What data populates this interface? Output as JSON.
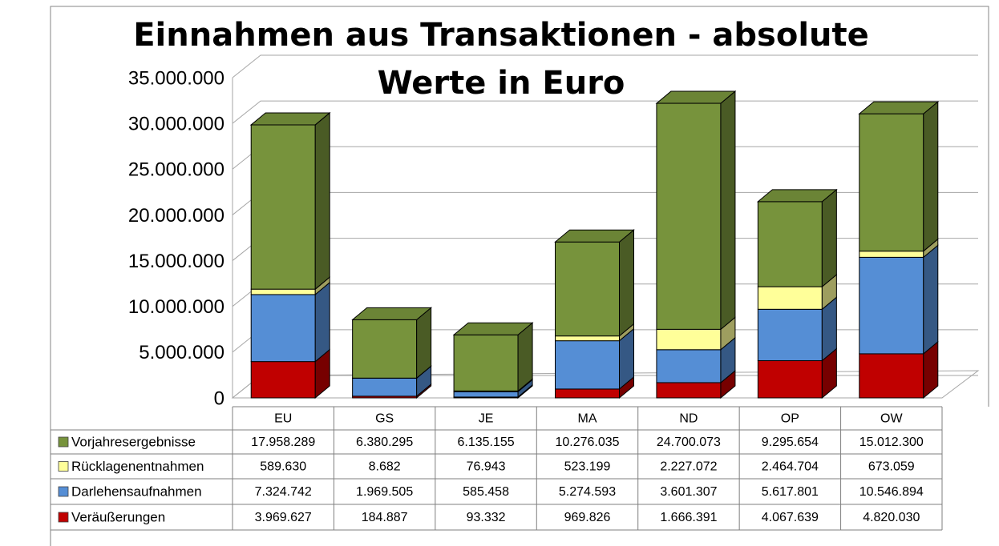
{
  "chart_data": {
    "type": "bar",
    "stacked": true,
    "three_d": true,
    "title": "Einnahmen aus Transaktionen - absolute Werte in Euro",
    "categories": [
      "EU",
      "GS",
      "JE",
      "MA",
      "ND",
      "OP",
      "OW"
    ],
    "series": [
      {
        "name": "Veräußerungen",
        "color": "#c00000",
        "values": [
          3969627,
          184887,
          93332,
          969826,
          1666391,
          4067639,
          4820030
        ],
        "value_labels": [
          "3.969.627",
          "184.887",
          "93.332",
          "969.826",
          "1.666.391",
          "4.067.639",
          "4.820.030"
        ]
      },
      {
        "name": "Darlehensaufnahmen",
        "color": "#558ed5",
        "values": [
          7324742,
          1969505,
          585458,
          5274593,
          3601307,
          5617801,
          10546894
        ],
        "value_labels": [
          "7.324.742",
          "1.969.505",
          "585.458",
          "5.274.593",
          "3.601.307",
          "5.617.801",
          "10.546.894"
        ]
      },
      {
        "name": "Rücklagenentnahmen",
        "color": "#ffff99",
        "values": [
          589630,
          8682,
          76943,
          523199,
          2227072,
          2464704,
          673059
        ],
        "value_labels": [
          "589.630",
          "8.682",
          "76.943",
          "523.199",
          "2.227.072",
          "2.464.704",
          "673.059"
        ]
      },
      {
        "name": "Vorjahresergebnisse",
        "color": "#77933c",
        "values": [
          17958289,
          6380295,
          6135155,
          10276035,
          24700073,
          9295654,
          15012300
        ],
        "value_labels": [
          "17.958.289",
          "6.380.295",
          "6.135.155",
          "10.276.035",
          "24.700.073",
          "9.295.654",
          "15.012.300"
        ]
      }
    ],
    "ylim": [
      0,
      35000000
    ],
    "yticks": [
      0,
      {
        "value": 5000000,
        "label": "5.000.000"
      },
      {
        "value": 10000000,
        "label": "10.000.000"
      },
      {
        "value": 15000000,
        "label": "15.000.000"
      },
      {
        "value": 20000000,
        "label": "20.000.000"
      },
      {
        "value": 25000000,
        "label": "25.000.000"
      },
      {
        "value": 30000000,
        "label": "30.000.000"
      },
      {
        "value": 35000000,
        "label": "35.000.000"
      }
    ],
    "grid": true,
    "legend": "table"
  }
}
